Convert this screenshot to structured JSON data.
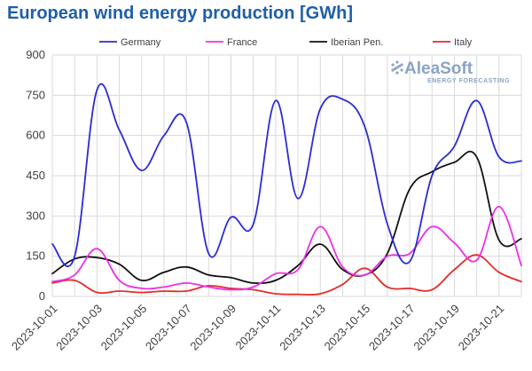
{
  "chart_data": {
    "type": "line",
    "title": "European wind energy production [GWh]",
    "x": [
      "2023-10-01",
      "2023-10-02",
      "2023-10-03",
      "2023-10-04",
      "2023-10-05",
      "2023-10-06",
      "2023-10-07",
      "2023-10-08",
      "2023-10-09",
      "2023-10-10",
      "2023-10-11",
      "2023-10-12",
      "2023-10-13",
      "2023-10-14",
      "2023-10-15",
      "2023-10-16",
      "2023-10-17",
      "2023-10-18",
      "2023-10-19",
      "2023-10-20",
      "2023-10-21",
      "2023-10-22"
    ],
    "x_tick_labels": [
      "2023-10-01",
      "2023-10-03",
      "2023-10-05",
      "2023-10-07",
      "2023-10-09",
      "2023-10-11",
      "2023-10-13",
      "2023-10-15",
      "2023-10-17",
      "2023-10-19",
      "2023-10-21"
    ],
    "ylim": [
      0,
      900
    ],
    "y_ticks": [
      0,
      150,
      300,
      450,
      600,
      750,
      900
    ],
    "grid": true,
    "legend_position": "top",
    "series": [
      {
        "name": "Germany",
        "color": "#2b2bd6",
        "values": [
          195,
          150,
          770,
          620,
          470,
          600,
          650,
          160,
          295,
          270,
          730,
          365,
          700,
          735,
          630,
          270,
          130,
          450,
          560,
          730,
          520,
          505
        ]
      },
      {
        "name": "France",
        "color": "#ee2ee8",
        "values": [
          55,
          80,
          178,
          60,
          30,
          35,
          50,
          35,
          25,
          35,
          85,
          100,
          260,
          110,
          80,
          150,
          160,
          260,
          200,
          135,
          335,
          115
        ]
      },
      {
        "name": "Iberian Pen.",
        "color": "#111111",
        "values": [
          85,
          140,
          145,
          120,
          60,
          90,
          110,
          80,
          70,
          50,
          60,
          115,
          195,
          100,
          80,
          160,
          400,
          465,
          500,
          520,
          210,
          215
        ]
      },
      {
        "name": "Italy",
        "color": "#e52b2b",
        "values": [
          50,
          60,
          15,
          20,
          15,
          20,
          20,
          40,
          30,
          25,
          10,
          8,
          10,
          45,
          105,
          35,
          30,
          25,
          100,
          155,
          90,
          55
        ]
      }
    ]
  },
  "logo": {
    "brand": "AleaSoft",
    "tagline": "ENERGY FORECASTING"
  }
}
